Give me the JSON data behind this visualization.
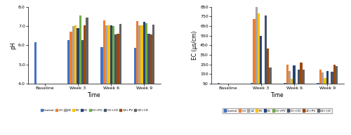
{
  "ph_data": {
    "categories": [
      "Baseline",
      "Week 3",
      "Week 6",
      "Week 9"
    ],
    "series": {
      "Control": [
        6.15,
        6.25,
        5.9,
        5.85
      ],
      "CO": [
        null,
        6.7,
        7.3,
        7.25
      ],
      "CZ": [
        null,
        7.0,
        7.05,
        7.05
      ],
      "PV": [
        null,
        7.05,
        7.05,
        7.05
      ],
      "CD": [
        null,
        6.9,
        7.05,
        7.2
      ],
      "CO+PV": [
        null,
        7.55,
        7.0,
        7.15
      ],
      "CO+CD": [
        null,
        6.25,
        6.55,
        6.6
      ],
      "CZ+PV": [
        null,
        7.02,
        6.6,
        6.57
      ],
      "CZ+CD": [
        null,
        7.42,
        7.1,
        7.07
      ]
    },
    "ylabel": "pH",
    "xlabel": "Time",
    "ylim": [
      4.0,
      8.0
    ],
    "yticks": [
      4.0,
      5.0,
      6.0,
      7.0,
      8.0
    ]
  },
  "ec_data": {
    "categories": [
      "Baseline",
      "Week 3",
      "Week 6",
      "Week 9"
    ],
    "series": {
      "Control": [
        60,
        55,
        55,
        55
      ],
      "CO": [
        null,
        720,
        245,
        200
      ],
      "CZ": [
        null,
        855,
        185,
        170
      ],
      "PV": [
        null,
        780,
        100,
        110
      ],
      "CD": [
        null,
        545,
        240,
        185
      ],
      "CO+PV": [
        null,
        null,
        null,
        null
      ],
      "CO+CD": [
        null,
        760,
        195,
        175
      ],
      "CZ+PV": [
        null,
        415,
        270,
        245
      ],
      "CZ+CD": [
        null,
        215,
        195,
        230
      ]
    },
    "ylabel": "EC (μs/cm)",
    "xlabel": "Time",
    "ylim": [
      50,
      850
    ],
    "yticks": [
      50,
      150,
      250,
      350,
      450,
      550,
      650,
      750,
      850
    ]
  },
  "series_names": [
    "Control",
    "CO",
    "CZ",
    "PV",
    "CD",
    "CO+PV",
    "CO+CD",
    "CZ+PV",
    "CZ+CD"
  ],
  "series_colors": {
    "Control": "#4472C4",
    "CO": "#ED7D31",
    "CZ": "#A5A5A5",
    "PV": "#FFC000",
    "CD": "#264478",
    "CO+PV": "#70AD47",
    "CO+CD": "#44546A",
    "CZ+PV": "#9E480E",
    "CZ+CD": "#636363"
  }
}
